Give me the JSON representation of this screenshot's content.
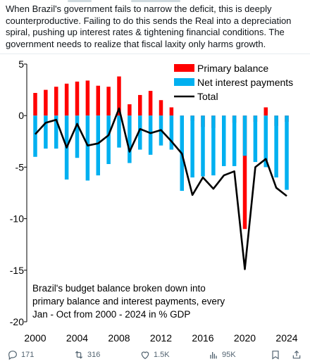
{
  "tweet": {
    "text": "When Brazil's government fails to narrow the deficit, this is deeply counterproductive. Failing to do this sends the Real into a depreciation spiral, pushing up interest rates & tightening financial conditions. The government needs to realize that fiscal laxity only harms growth."
  },
  "actions": {
    "reply_count": "171",
    "retweet_count": "316",
    "like_count": "1.5K",
    "views_count": "95K",
    "icons": [
      "reply-icon",
      "retweet-icon",
      "like-icon",
      "views-icon",
      "bookmark-icon",
      "share-icon"
    ]
  },
  "chart_data": {
    "type": "bar",
    "annotation": "Brazil's budget balance broken down into primary balance and interest payments, every Jan - Oct from 2000 - 2024 in % GDP",
    "x": [
      2000,
      2001,
      2002,
      2003,
      2004,
      2005,
      2006,
      2007,
      2008,
      2009,
      2010,
      2011,
      2012,
      2013,
      2014,
      2015,
      2016,
      2017,
      2018,
      2019,
      2020,
      2021,
      2022,
      2023,
      2024
    ],
    "series": [
      {
        "name": "Primary balance",
        "type": "bar",
        "color": "#ff0000",
        "values": [
          2.2,
          2.5,
          2.8,
          3.1,
          3.3,
          3.4,
          2.9,
          2.8,
          3.8,
          1.1,
          2.0,
          2.4,
          1.5,
          0.8,
          -0.3,
          -0.5,
          -1.1,
          -1.2,
          -0.9,
          -0.7,
          -11.0,
          -0.6,
          0.8,
          -1.0,
          -0.6
        ]
      },
      {
        "name": "Net interest payments",
        "type": "bar",
        "color": "#00b0f0",
        "values": [
          -4.0,
          -3.2,
          -3.2,
          -6.2,
          -4.1,
          -6.3,
          -5.8,
          -4.7,
          -3.1,
          -4.6,
          -3.3,
          -3.8,
          -2.9,
          -3.3,
          -7.3,
          -6.0,
          -5.9,
          -5.8,
          -4.9,
          -4.9,
          -3.9,
          -4.5,
          -5.0,
          -6.0,
          -7.2
        ]
      },
      {
        "name": "Total",
        "type": "line",
        "color": "#000000",
        "values": [
          -1.8,
          -0.7,
          -0.4,
          -3.1,
          -0.8,
          -2.9,
          -2.7,
          -1.9,
          0.7,
          -3.5,
          -1.3,
          -1.7,
          -1.4,
          -2.5,
          -3.7,
          -7.7,
          -6.0,
          -7.1,
          -5.8,
          -5.4,
          -14.9,
          -5.0,
          -4.2,
          -7.0,
          -7.8
        ]
      }
    ],
    "ylim": [
      -20,
      5
    ],
    "yticks": [
      "5",
      "0",
      "-5",
      "-10",
      "-15",
      "-20"
    ],
    "ytick_values": [
      5,
      0,
      -5,
      -10,
      -15,
      -20
    ],
    "xticks": [
      "2000",
      "2004",
      "2008",
      "2012",
      "2016",
      "2020",
      "2024"
    ],
    "xtick_values": [
      2000,
      2004,
      2008,
      2012,
      2016,
      2020,
      2024
    ],
    "legend_position": "top-right",
    "grid": false
  }
}
